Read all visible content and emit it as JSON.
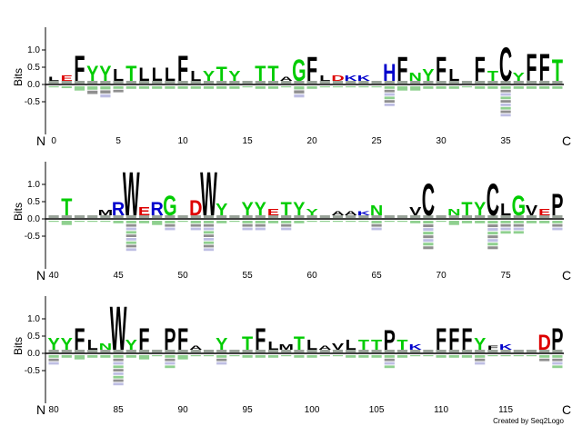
{
  "chart_data": {
    "type": "sequence-logo",
    "ylabel": "Bits",
    "y_ticks": [
      -0.5,
      0.0,
      0.5,
      1.0
    ],
    "y_tick_labels": [
      "-0.5",
      "0.0",
      "0.5",
      "1.0"
    ],
    "ylim": [
      -0.9,
      1.4
    ],
    "n_label": "N",
    "c_label": "C",
    "colors": {
      "hydrophobic": "#000000",
      "polar": "#00cc00",
      "basic": "#0000cc",
      "acidic": "#dd0000",
      "other": "#8844aa"
    },
    "rows": [
      {
        "start": 0,
        "end": 39,
        "tick_labels": [
          "0",
          "5",
          "10",
          "15",
          "20",
          "25",
          "30",
          "35"
        ],
        "positions": [
          {
            "pos": 0,
            "top": "L",
            "h": 0.12,
            "below": 0.05
          },
          {
            "pos": 1,
            "top": "E",
            "h": 0.15,
            "below": 0.08
          },
          {
            "pos": 2,
            "top": "F",
            "h": 0.75,
            "below": 0.15
          },
          {
            "pos": 3,
            "top": "Y",
            "h": 0.45,
            "below": 0.25
          },
          {
            "pos": 4,
            "top": "Y",
            "h": 0.45,
            "below": 0.35
          },
          {
            "pos": 5,
            "top": "L",
            "h": 0.35,
            "below": 0.2
          },
          {
            "pos": 6,
            "top": "T",
            "h": 0.45,
            "below": 0.1
          },
          {
            "pos": 7,
            "top": "L",
            "h": 0.4,
            "below": 0.1
          },
          {
            "pos": 8,
            "top": "L",
            "h": 0.4,
            "below": 0.1
          },
          {
            "pos": 9,
            "top": "L",
            "h": 0.4,
            "below": 0.1
          },
          {
            "pos": 10,
            "top": "F",
            "h": 0.75,
            "below": 0.1
          },
          {
            "pos": 11,
            "top": "L",
            "h": 0.3,
            "below": 0.1
          },
          {
            "pos": 12,
            "top": "Y",
            "h": 0.3,
            "below": 0.1
          },
          {
            "pos": 13,
            "top": "T",
            "h": 0.42,
            "below": 0.1
          },
          {
            "pos": 14,
            "top": "Y",
            "h": 0.3,
            "below": 0.1
          },
          {
            "pos": 15,
            "top": "",
            "h": 0,
            "below": 0.05
          },
          {
            "pos": 16,
            "top": "T",
            "h": 0.45,
            "below": 0.1
          },
          {
            "pos": 17,
            "top": "T",
            "h": 0.45,
            "below": 0.1
          },
          {
            "pos": 18,
            "top": "A",
            "h": 0.12,
            "below": 0.05
          },
          {
            "pos": 19,
            "top": "G",
            "h": 0.65,
            "below": 0.35
          },
          {
            "pos": 20,
            "top": "F",
            "h": 0.72,
            "below": 0.1
          },
          {
            "pos": 21,
            "top": "L",
            "h": 0.15,
            "below": 0.05
          },
          {
            "pos": 22,
            "top": "D",
            "h": 0.15,
            "below": 0.05
          },
          {
            "pos": 23,
            "top": "K",
            "h": 0.15,
            "below": 0.05
          },
          {
            "pos": 24,
            "top": "K",
            "h": 0.15,
            "below": 0.05
          },
          {
            "pos": 25,
            "top": "",
            "h": 0,
            "below": 0.05
          },
          {
            "pos": 26,
            "top": "H",
            "h": 0.5,
            "below": 0.6
          },
          {
            "pos": 27,
            "top": "F",
            "h": 0.72,
            "below": 0.15
          },
          {
            "pos": 28,
            "top": "N",
            "h": 0.25,
            "below": 0.15
          },
          {
            "pos": 29,
            "top": "Y",
            "h": 0.35,
            "below": 0.1
          },
          {
            "pos": 30,
            "top": "F",
            "h": 0.72,
            "below": 0.1
          },
          {
            "pos": 31,
            "top": "L",
            "h": 0.35,
            "below": 0.1
          },
          {
            "pos": 32,
            "top": "",
            "h": 0,
            "below": 0.05
          },
          {
            "pos": 33,
            "top": "F",
            "h": 0.72,
            "below": 0.1
          },
          {
            "pos": 34,
            "top": "T",
            "h": 0.3,
            "below": 0.1
          },
          {
            "pos": 35,
            "top": "C",
            "h": 1.0,
            "below": 0.9
          },
          {
            "pos": 36,
            "top": "Y",
            "h": 0.25,
            "below": 0.1
          },
          {
            "pos": 37,
            "top": "F",
            "h": 0.8,
            "below": 0.1
          },
          {
            "pos": 38,
            "top": "F",
            "h": 0.8,
            "below": 0.1
          },
          {
            "pos": 39,
            "top": "T",
            "h": 0.65,
            "below": 0.1
          }
        ]
      },
      {
        "start": 40,
        "end": 79,
        "tick_labels": [
          "40",
          "45",
          "50",
          "55",
          "60",
          "65",
          "70",
          "75"
        ],
        "positions": [
          {
            "pos": 40,
            "top": "",
            "h": 0,
            "below": 0.05
          },
          {
            "pos": 41,
            "top": "T",
            "h": 0.5,
            "below": 0.15
          },
          {
            "pos": 42,
            "top": "",
            "h": 0,
            "below": 0.05
          },
          {
            "pos": 43,
            "top": "",
            "h": 0,
            "below": 0.05
          },
          {
            "pos": 44,
            "top": "M",
            "h": 0.15,
            "below": 0.05
          },
          {
            "pos": 45,
            "top": "R",
            "h": 0.4,
            "below": 0.1
          },
          {
            "pos": 46,
            "top": "W",
            "h": 1.3,
            "below": 0.9
          },
          {
            "pos": 47,
            "top": "E",
            "h": 0.25,
            "below": 0.1
          },
          {
            "pos": 48,
            "top": "R",
            "h": 0.4,
            "below": 0.15
          },
          {
            "pos": 49,
            "top": "G",
            "h": 0.6,
            "below": 0.3
          },
          {
            "pos": 50,
            "top": "",
            "h": 0,
            "below": 0.05
          },
          {
            "pos": 51,
            "top": "D",
            "h": 0.45,
            "below": 0.3
          },
          {
            "pos": 52,
            "top": "W",
            "h": 1.3,
            "below": 0.9
          },
          {
            "pos": 53,
            "top": "Y",
            "h": 0.35,
            "below": 0.1
          },
          {
            "pos": 54,
            "top": "",
            "h": 0,
            "below": 0.05
          },
          {
            "pos": 55,
            "top": "Y",
            "h": 0.4,
            "below": 0.3
          },
          {
            "pos": 56,
            "top": "Y",
            "h": 0.4,
            "below": 0.3
          },
          {
            "pos": 57,
            "top": "E",
            "h": 0.2,
            "below": 0.1
          },
          {
            "pos": 58,
            "top": "T",
            "h": 0.4,
            "below": 0.3
          },
          {
            "pos": 59,
            "top": "Y",
            "h": 0.4,
            "below": 0.1
          },
          {
            "pos": 60,
            "top": "Y",
            "h": 0.2,
            "below": 0.05
          },
          {
            "pos": 61,
            "top": "",
            "h": 0,
            "below": 0.05
          },
          {
            "pos": 62,
            "top": "A",
            "h": 0.12,
            "below": 0.05
          },
          {
            "pos": 63,
            "top": "A",
            "h": 0.12,
            "below": 0.05
          },
          {
            "pos": 64,
            "top": "K",
            "h": 0.12,
            "below": 0.05
          },
          {
            "pos": 65,
            "top": "N",
            "h": 0.3,
            "below": 0.3
          },
          {
            "pos": 66,
            "top": "",
            "h": 0,
            "below": 0.05
          },
          {
            "pos": 67,
            "top": "",
            "h": 0,
            "below": 0.05
          },
          {
            "pos": 68,
            "top": "V",
            "h": 0.25,
            "below": 0.1
          },
          {
            "pos": 69,
            "top": "C",
            "h": 0.95,
            "below": 0.85
          },
          {
            "pos": 70,
            "top": "",
            "h": 0,
            "below": 0.05
          },
          {
            "pos": 71,
            "top": "N",
            "h": 0.2,
            "below": 0.15
          },
          {
            "pos": 72,
            "top": "T",
            "h": 0.4,
            "below": 0.1
          },
          {
            "pos": 73,
            "top": "Y",
            "h": 0.4,
            "below": 0.1
          },
          {
            "pos": 74,
            "top": "C",
            "h": 0.95,
            "below": 0.85
          },
          {
            "pos": 75,
            "top": "L",
            "h": 0.35,
            "below": 0.4
          },
          {
            "pos": 76,
            "top": "G",
            "h": 0.6,
            "below": 0.4
          },
          {
            "pos": 77,
            "top": "V",
            "h": 0.3,
            "below": 0.1
          },
          {
            "pos": 78,
            "top": "E",
            "h": 0.2,
            "below": 0.1
          },
          {
            "pos": 79,
            "top": "P",
            "h": 0.65,
            "below": 0.3
          }
        ]
      },
      {
        "start": 80,
        "end": 119,
        "tick_labels": [
          "80",
          "85",
          "90",
          "95",
          "100",
          "105",
          "110",
          "115"
        ],
        "positions": [
          {
            "pos": 80,
            "top": "Y",
            "h": 0.35,
            "below": 0.3
          },
          {
            "pos": 81,
            "top": "Y",
            "h": 0.35,
            "below": 0.1
          },
          {
            "pos": 82,
            "top": "F",
            "h": 0.65,
            "below": 0.15
          },
          {
            "pos": 83,
            "top": "L",
            "h": 0.3,
            "below": 0.1
          },
          {
            "pos": 84,
            "top": "N",
            "h": 0.2,
            "below": 0.1
          },
          {
            "pos": 85,
            "top": "W",
            "h": 1.3,
            "below": 0.9
          },
          {
            "pos": 86,
            "top": "Y",
            "h": 0.3,
            "below": 0.1
          },
          {
            "pos": 87,
            "top": "F",
            "h": 0.65,
            "below": 0.15
          },
          {
            "pos": 88,
            "top": "",
            "h": 0,
            "below": 0.05
          },
          {
            "pos": 89,
            "top": "P",
            "h": 0.65,
            "below": 0.4
          },
          {
            "pos": 90,
            "top": "F",
            "h": 0.65,
            "below": 0.15
          },
          {
            "pos": 91,
            "top": "A",
            "h": 0.12,
            "below": 0.05
          },
          {
            "pos": 92,
            "top": "",
            "h": 0,
            "below": 0.05
          },
          {
            "pos": 93,
            "top": "Y",
            "h": 0.35,
            "below": 0.3
          },
          {
            "pos": 94,
            "top": "",
            "h": 0,
            "below": 0.05
          },
          {
            "pos": 95,
            "top": "T",
            "h": 0.4,
            "below": 0.1
          },
          {
            "pos": 96,
            "top": "F",
            "h": 0.65,
            "below": 0.1
          },
          {
            "pos": 97,
            "top": "L",
            "h": 0.25,
            "below": 0.1
          },
          {
            "pos": 98,
            "top": "M",
            "h": 0.15,
            "below": 0.05
          },
          {
            "pos": 99,
            "top": "T",
            "h": 0.4,
            "below": 0.1
          },
          {
            "pos": 100,
            "top": "L",
            "h": 0.3,
            "below": 0.1
          },
          {
            "pos": 101,
            "top": "A",
            "h": 0.12,
            "below": 0.05
          },
          {
            "pos": 102,
            "top": "V",
            "h": 0.2,
            "below": 0.05
          },
          {
            "pos": 103,
            "top": "L",
            "h": 0.3,
            "below": 0.1
          },
          {
            "pos": 104,
            "top": "T",
            "h": 0.3,
            "below": 0.1
          },
          {
            "pos": 105,
            "top": "T",
            "h": 0.3,
            "below": 0.1
          },
          {
            "pos": 106,
            "top": "P",
            "h": 0.6,
            "below": 0.4
          },
          {
            "pos": 107,
            "top": "T",
            "h": 0.3,
            "below": 0.1
          },
          {
            "pos": 108,
            "top": "K",
            "h": 0.15,
            "below": 0.05
          },
          {
            "pos": 109,
            "top": "",
            "h": 0,
            "below": 0.05
          },
          {
            "pos": 110,
            "top": "F",
            "h": 0.65,
            "below": 0.1
          },
          {
            "pos": 111,
            "top": "F",
            "h": 0.65,
            "below": 0.1
          },
          {
            "pos": 112,
            "top": "F",
            "h": 0.65,
            "below": 0.1
          },
          {
            "pos": 113,
            "top": "Y",
            "h": 0.35,
            "below": 0.3
          },
          {
            "pos": 114,
            "top": "F",
            "h": 0.12,
            "below": 0.05
          },
          {
            "pos": 115,
            "top": "K",
            "h": 0.15,
            "below": 0.05
          },
          {
            "pos": 116,
            "top": "",
            "h": 0,
            "below": 0.05
          },
          {
            "pos": 117,
            "top": "",
            "h": 0,
            "below": 0.05
          },
          {
            "pos": 118,
            "top": "D",
            "h": 0.45,
            "below": 0.2
          },
          {
            "pos": 119,
            "top": "P",
            "h": 0.65,
            "below": 0.4
          }
        ]
      }
    ]
  },
  "footer": {
    "credit": "Created by Seq2Logo"
  }
}
